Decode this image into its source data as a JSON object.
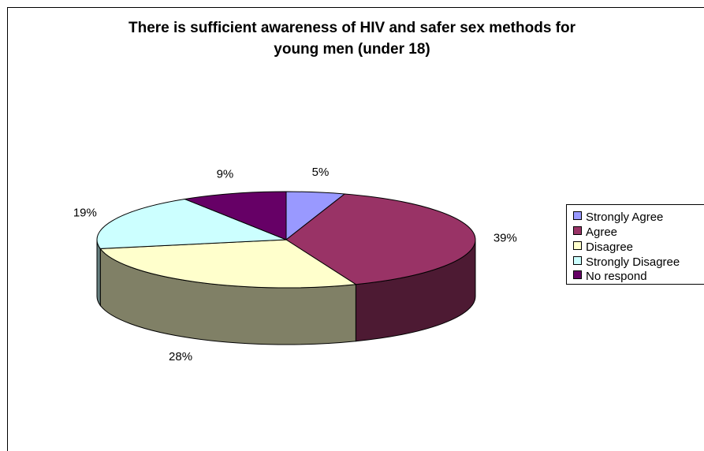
{
  "chart_data": {
    "type": "pie",
    "title": "There is sufficient awareness of HIV and safer sex methods for young men (under 18)",
    "title_lines": [
      "There is sufficient awareness of HIV and safer sex methods for",
      "young men (under 18)"
    ],
    "style": "3d",
    "legend_position": "right",
    "slices": [
      {
        "label": "Strongly Agree",
        "value": 5,
        "value_label": "5%",
        "color": "#9999ff"
      },
      {
        "label": "Agree",
        "value": 39,
        "value_label": "39%",
        "color": "#993366"
      },
      {
        "label": "Disagree",
        "value": 28,
        "value_label": "28%",
        "color": "#ffffcc"
      },
      {
        "label": "Strongly Disagree",
        "value": 19,
        "value_label": "19%",
        "color": "#ccffff"
      },
      {
        "label": "No respond",
        "value": 9,
        "value_label": "9%",
        "color": "#660066"
      }
    ]
  }
}
